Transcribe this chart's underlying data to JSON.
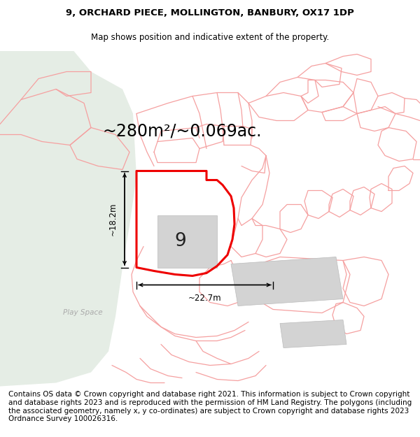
{
  "title": "9, ORCHARD PIECE, MOLLINGTON, BANBURY, OX17 1DP",
  "subtitle": "Map shows position and indicative extent of the property.",
  "area_label": "~280m²/~0.069ac.",
  "width_label": "~22.7m",
  "height_label": "~18.2m",
  "number_label": "9",
  "play_space_label": "Play Space",
  "footer": "Contains OS data © Crown copyright and database right 2021. This information is subject to Crown copyright and database rights 2023 and is reproduced with the permission of HM Land Registry. The polygons (including the associated geometry, namely x, y co-ordinates) are subject to Crown copyright and database rights 2023 Ordnance Survey 100026316.",
  "bg_color": "#ffffff",
  "map_bg": "#ffffff",
  "green_area_color": "#e5ede5",
  "plot_outline_color": "#ee0000",
  "building_fill": "#d3d3d3",
  "building_edge": "#bbbbbb",
  "light_red_line_color": "#f5a0a0",
  "footer_fontsize": 7.5,
  "title_fontsize": 9.5,
  "subtitle_fontsize": 8.5
}
